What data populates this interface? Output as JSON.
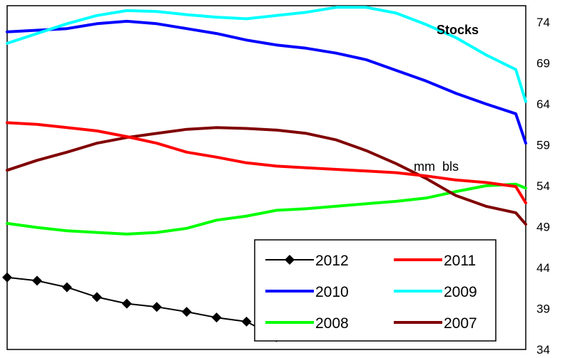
{
  "chart_data": {
    "type": "line",
    "title": "Stocks",
    "annotation": "mm  bls",
    "x": [
      1,
      2,
      3,
      4,
      5,
      6,
      7,
      8,
      9,
      10,
      11,
      12,
      13,
      14,
      15,
      16,
      17,
      18,
      19,
      20,
      21,
      22,
      23,
      24,
      25,
      26,
      27,
      28,
      29,
      30,
      31,
      32,
      33,
      34,
      35,
      36,
      37,
      38,
      39,
      40,
      41,
      42,
      43,
      44,
      45,
      46,
      47,
      48,
      49,
      50,
      51,
      52,
      53
    ],
    "ylim": [
      34,
      76
    ],
    "y_ticks": [
      34,
      39,
      44,
      49,
      54,
      59,
      64,
      69,
      74
    ],
    "y_axis_side": "right",
    "grid": false,
    "legend": {
      "position": "bottom-right",
      "columns": 2
    },
    "series": [
      {
        "name": "2012",
        "color": "#000000",
        "marker": "diamond",
        "points": [
          [
            1,
            42.8
          ],
          [
            4,
            42.4
          ],
          [
            7,
            41.6
          ],
          [
            10,
            40.4
          ],
          [
            13,
            39.6
          ],
          [
            16,
            39.2
          ],
          [
            19,
            38.6
          ],
          [
            22,
            37.9
          ],
          [
            25,
            37.4
          ],
          [
            28,
            35.5
          ]
        ]
      },
      {
        "name": "2011",
        "color": "#ff0000",
        "points": [
          [
            1,
            61.7
          ],
          [
            4,
            61.5
          ],
          [
            7,
            61.1
          ],
          [
            10,
            60.7
          ],
          [
            13,
            60.0
          ],
          [
            16,
            59.2
          ],
          [
            19,
            58.1
          ],
          [
            22,
            57.5
          ],
          [
            25,
            56.8
          ],
          [
            28,
            56.4
          ],
          [
            31,
            56.2
          ],
          [
            34,
            56.0
          ],
          [
            37,
            55.8
          ],
          [
            40,
            55.6
          ],
          [
            43,
            55.2
          ],
          [
            46,
            54.7
          ],
          [
            49,
            54.4
          ],
          [
            52,
            53.9
          ],
          [
            53,
            51.9
          ]
        ]
      },
      {
        "name": "2010",
        "color": "#0000ff",
        "points": [
          [
            1,
            72.8
          ],
          [
            4,
            73.0
          ],
          [
            7,
            73.2
          ],
          [
            10,
            73.8
          ],
          [
            13,
            74.1
          ],
          [
            16,
            73.8
          ],
          [
            19,
            73.2
          ],
          [
            22,
            72.6
          ],
          [
            25,
            71.8
          ],
          [
            28,
            71.2
          ],
          [
            31,
            70.8
          ],
          [
            34,
            70.2
          ],
          [
            37,
            69.4
          ],
          [
            40,
            68.1
          ],
          [
            43,
            66.8
          ],
          [
            46,
            65.3
          ],
          [
            49,
            64.0
          ],
          [
            52,
            62.8
          ],
          [
            53,
            59.2
          ]
        ]
      },
      {
        "name": "2009",
        "color": "#00ffff",
        "points": [
          [
            1,
            71.4
          ],
          [
            4,
            72.6
          ],
          [
            7,
            73.8
          ],
          [
            10,
            74.8
          ],
          [
            13,
            75.4
          ],
          [
            16,
            75.3
          ],
          [
            19,
            74.9
          ],
          [
            22,
            74.6
          ],
          [
            25,
            74.4
          ],
          [
            28,
            74.8
          ],
          [
            31,
            75.2
          ],
          [
            34,
            75.8
          ],
          [
            37,
            75.8
          ],
          [
            40,
            75.1
          ],
          [
            43,
            73.7
          ],
          [
            46,
            72.1
          ],
          [
            49,
            70.0
          ],
          [
            52,
            68.2
          ],
          [
            53,
            64.3
          ]
        ]
      },
      {
        "name": "2008",
        "color": "#00ff00",
        "points": [
          [
            1,
            49.4
          ],
          [
            4,
            48.9
          ],
          [
            7,
            48.5
          ],
          [
            10,
            48.3
          ],
          [
            13,
            48.1
          ],
          [
            16,
            48.3
          ],
          [
            19,
            48.8
          ],
          [
            22,
            49.8
          ],
          [
            25,
            50.3
          ],
          [
            28,
            51.0
          ],
          [
            31,
            51.2
          ],
          [
            34,
            51.5
          ],
          [
            37,
            51.8
          ],
          [
            40,
            52.1
          ],
          [
            43,
            52.5
          ],
          [
            46,
            53.3
          ],
          [
            49,
            54.0
          ],
          [
            52,
            54.2
          ],
          [
            53,
            53.7
          ]
        ]
      },
      {
        "name": "2007",
        "color": "#800000",
        "points": [
          [
            1,
            55.9
          ],
          [
            4,
            57.1
          ],
          [
            7,
            58.1
          ],
          [
            10,
            59.2
          ],
          [
            13,
            59.9
          ],
          [
            16,
            60.4
          ],
          [
            19,
            60.9
          ],
          [
            22,
            61.1
          ],
          [
            25,
            61.0
          ],
          [
            28,
            60.8
          ],
          [
            31,
            60.4
          ],
          [
            34,
            59.6
          ],
          [
            37,
            58.3
          ],
          [
            40,
            56.7
          ],
          [
            43,
            54.9
          ],
          [
            46,
            52.8
          ],
          [
            49,
            51.5
          ],
          [
            52,
            50.7
          ],
          [
            53,
            49.3
          ]
        ]
      }
    ]
  }
}
